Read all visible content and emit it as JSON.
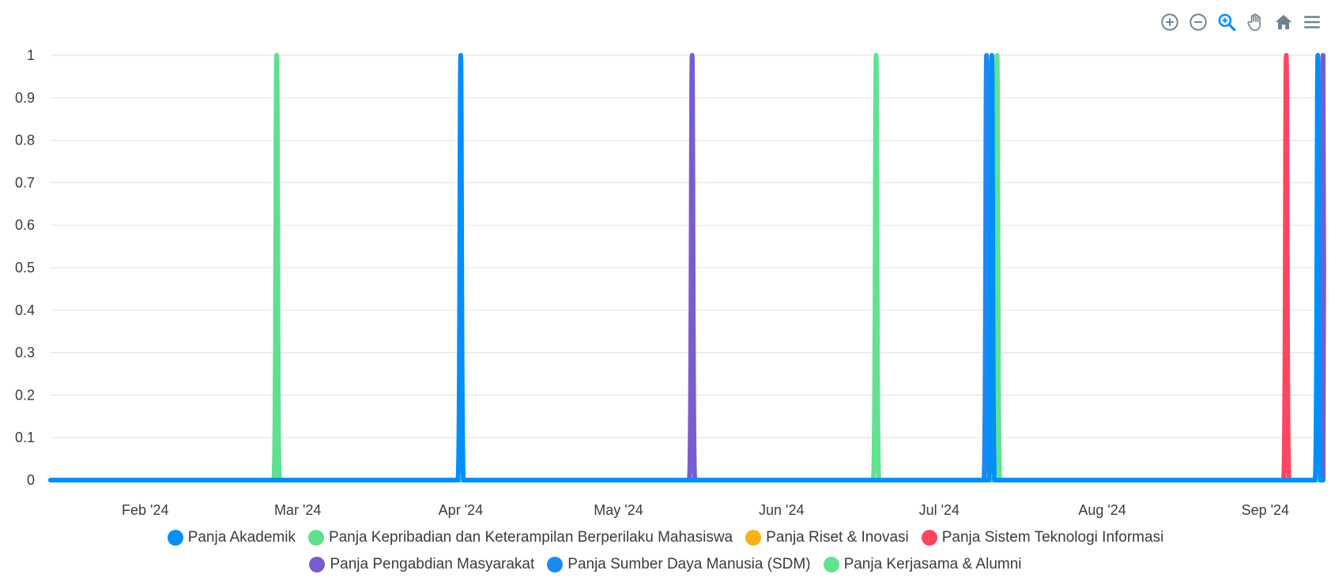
{
  "toolbar": {
    "icons": [
      "zoom-in-icon",
      "zoom-out-icon",
      "selection-zoom-icon",
      "pan-hand-icon",
      "reset-home-icon",
      "menu-icon"
    ],
    "active_color": "#008ffb",
    "icon_color": "#6e8192"
  },
  "chart_data": {
    "type": "line",
    "title": "",
    "xlabel": "",
    "ylabel": "",
    "x_ticks": [
      "Feb '24",
      "Mar '24",
      "Apr '24",
      "May '24",
      "Jun '24",
      "Jul '24",
      "Aug '24",
      "Sep '24"
    ],
    "x_tick_dates": [
      "2024-02-01",
      "2024-03-01",
      "2024-04-01",
      "2024-05-01",
      "2024-06-01",
      "2024-07-01",
      "2024-08-01",
      "2024-09-01"
    ],
    "xlim": [
      "2024-01-14",
      "2024-09-12"
    ],
    "ylim": [
      0,
      1
    ],
    "y_ticks": [
      "0",
      "0.1",
      "0.2",
      "0.3",
      "0.4",
      "0.5",
      "0.6",
      "0.7",
      "0.8",
      "0.9",
      "1"
    ],
    "grid": true,
    "legend_position": "bottom",
    "series": [
      {
        "name": "Panja Akademik",
        "color": "#008ffb",
        "peaks": [
          "2024-04-01",
          "2024-07-11",
          "2024-09-11"
        ]
      },
      {
        "name": "Panja Kepribadian dan Keterampilan Berperilaku Mahasiswa",
        "color": "#5fe08f",
        "peaks": [
          "2024-02-26"
        ]
      },
      {
        "name": "Panja Riset & Inovasi",
        "color": "#feb019",
        "peaks": []
      },
      {
        "name": "Panja Sistem Teknologi Informasi",
        "color": "#ff4560",
        "peaks": [
          "2024-09-05"
        ]
      },
      {
        "name": "Panja Pengabdian Masyarakat",
        "color": "#775dd0",
        "peaks": [
          "2024-05-15",
          "2024-09-12"
        ]
      },
      {
        "name": "Panja Sumber Daya Manusia (SDM)",
        "color": "#1b8af4",
        "peaks": [
          "2024-07-10"
        ]
      },
      {
        "name": "Panja Kerjasama & Alumni",
        "color": "#62e291",
        "peaks": [
          "2024-02-26",
          "2024-06-19",
          "2024-07-12"
        ]
      }
    ]
  }
}
